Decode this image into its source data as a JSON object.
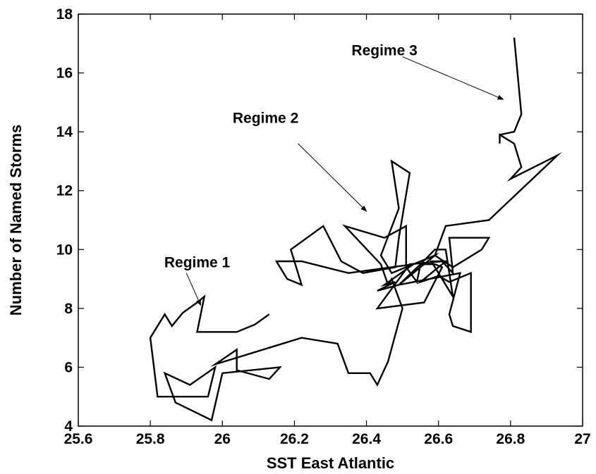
{
  "chart_data": {
    "type": "line",
    "title": "",
    "xlabel": "SST East Atlantic",
    "ylabel": "Number of Named Storms",
    "xlim": [
      25.6,
      27
    ],
    "ylim": [
      4,
      18
    ],
    "xticks": [
      25.6,
      25.8,
      26,
      26.2,
      26.4,
      26.6,
      26.8,
      27
    ],
    "xtick_labels": [
      "25.6",
      "25.8",
      "26",
      "26.2",
      "26.4",
      "26.6",
      "26.8",
      "27"
    ],
    "yticks": [
      4,
      6,
      8,
      10,
      12,
      14,
      16,
      18
    ],
    "ytick_labels": [
      "4",
      "6",
      "8",
      "10",
      "12",
      "14",
      "16",
      "18"
    ],
    "grid": false,
    "line_color": "#000000",
    "series": [
      {
        "points": [
          [
            26.13,
            7.8
          ],
          [
            26.09,
            7.45
          ],
          [
            26.04,
            7.2
          ],
          [
            25.93,
            7.2
          ],
          [
            25.95,
            8.4
          ],
          [
            25.93,
            8.2
          ],
          [
            25.89,
            7.85
          ],
          [
            25.86,
            7.4
          ],
          [
            25.84,
            7.8
          ],
          [
            25.8,
            7.0
          ],
          [
            25.82,
            5.0
          ],
          [
            25.96,
            5.0
          ],
          [
            25.98,
            6.0
          ],
          [
            25.91,
            5.4
          ],
          [
            25.84,
            5.8
          ],
          [
            25.87,
            4.8
          ],
          [
            25.97,
            4.2
          ],
          [
            26.0,
            5.8
          ],
          [
            26.16,
            6.0
          ],
          [
            26.13,
            5.6
          ],
          [
            26.04,
            5.9
          ],
          [
            26.04,
            6.6
          ],
          [
            25.98,
            6.1
          ],
          [
            26.22,
            7.0
          ],
          [
            26.32,
            6.8
          ],
          [
            26.35,
            5.8
          ],
          [
            26.41,
            5.8
          ],
          [
            26.43,
            5.4
          ],
          [
            26.46,
            6.2
          ],
          [
            26.5,
            8.0
          ],
          [
            26.47,
            9.0
          ],
          [
            26.46,
            8.8
          ],
          [
            26.44,
            9.5
          ],
          [
            26.34,
            10.8
          ],
          [
            26.45,
            10.4
          ],
          [
            26.51,
            10.8
          ],
          [
            26.51,
            9.4
          ],
          [
            26.54,
            8.9
          ],
          [
            26.55,
            9.5
          ],
          [
            26.59,
            10.0
          ],
          [
            26.62,
            10.0
          ],
          [
            26.64,
            8.4
          ],
          [
            26.58,
            9.6
          ],
          [
            26.62,
            9.6
          ],
          [
            26.55,
            8.9
          ],
          [
            26.6,
            9.1
          ],
          [
            26.63,
            8.9
          ],
          [
            26.69,
            9.2
          ],
          [
            26.69,
            7.2
          ],
          [
            26.64,
            7.4
          ],
          [
            26.63,
            7.8
          ],
          [
            26.66,
            9.2
          ],
          [
            26.49,
            8.8
          ],
          [
            26.59,
            9.8
          ],
          [
            26.47,
            9.2
          ],
          [
            26.44,
            9.8
          ],
          [
            26.49,
            11.4
          ],
          [
            26.47,
            13.0
          ],
          [
            26.52,
            12.6
          ],
          [
            26.49,
            10.4
          ],
          [
            26.48,
            9.4
          ],
          [
            26.39,
            9.2
          ],
          [
            26.33,
            9.6
          ],
          [
            26.28,
            10.8
          ],
          [
            26.19,
            10.0
          ],
          [
            26.22,
            8.8
          ],
          [
            26.18,
            9.0
          ],
          [
            26.15,
            9.6
          ],
          [
            26.22,
            9.6
          ],
          [
            26.35,
            9.2
          ],
          [
            26.53,
            9.5
          ],
          [
            26.45,
            8.8
          ],
          [
            26.48,
            8.9
          ],
          [
            26.43,
            8.6
          ],
          [
            26.49,
            8.8
          ],
          [
            26.55,
            9.5
          ],
          [
            26.59,
            9.5
          ],
          [
            26.61,
            9.4
          ],
          [
            26.56,
            8.2
          ],
          [
            26.43,
            8.0
          ],
          [
            26.52,
            9.5
          ],
          [
            26.61,
            9.6
          ],
          [
            26.64,
            9.2
          ],
          [
            26.63,
            10.4
          ],
          [
            26.74,
            10.4
          ],
          [
            26.72,
            10.0
          ],
          [
            26.64,
            9.4
          ],
          [
            26.59,
            9.8
          ],
          [
            26.62,
            10.8
          ],
          [
            26.74,
            11.0
          ],
          [
            26.93,
            13.2
          ],
          [
            26.8,
            12.4
          ],
          [
            26.83,
            12.8
          ],
          [
            26.81,
            13.6
          ],
          [
            26.77,
            13.9
          ],
          [
            26.77,
            13.6
          ],
          [
            26.77,
            13.9
          ],
          [
            26.81,
            14.0
          ],
          [
            26.83,
            14.6
          ],
          [
            26.81,
            17.2
          ]
        ]
      }
    ],
    "annotations": [
      {
        "text": "Regime 1",
        "text_at": [
          25.93,
          9.4
        ],
        "arrow_from": [
          25.9,
          9.2
        ],
        "arrow_to": [
          25.94,
          8.1
        ]
      },
      {
        "text": "Regime 2",
        "text_at": [
          26.12,
          14.3
        ],
        "arrow_from": [
          26.21,
          13.6
        ],
        "arrow_to": [
          26.4,
          11.3
        ]
      },
      {
        "text": "Regime 3",
        "text_at": [
          26.45,
          16.6
        ],
        "arrow_from": [
          26.5,
          16.55
        ],
        "arrow_to": [
          26.78,
          15.1
        ]
      }
    ]
  }
}
